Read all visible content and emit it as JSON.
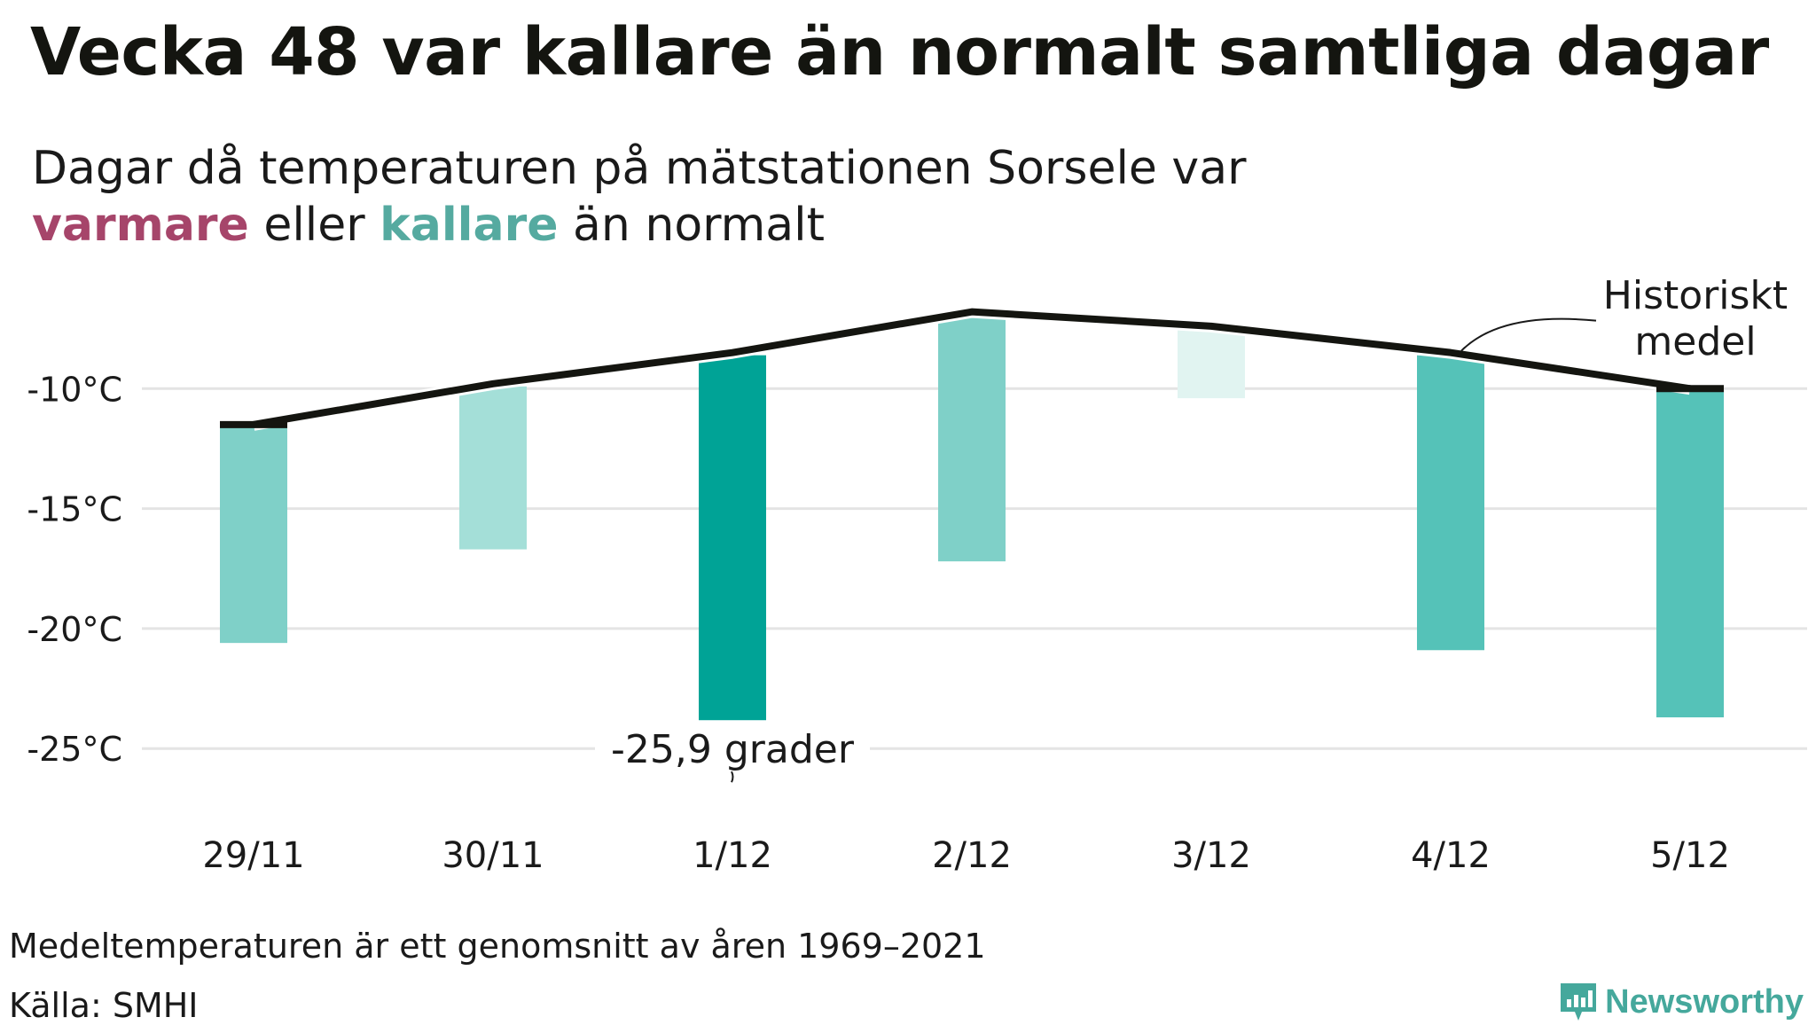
{
  "title": "Vecka 48 var kallare än normalt samtliga dagar",
  "subtitle": {
    "line1": "Dagar då temperaturen på mätstationen Sorsele var",
    "warm_word": "varmare",
    "between": "eller",
    "cold_word": "kallare",
    "end": "än normalt"
  },
  "colors": {
    "warm": "#a6456a",
    "cold": "#55aaa0",
    "line": "#141510",
    "grid": "#e4e4e4",
    "brand": "#45a89c"
  },
  "chart_data": {
    "type": "bar",
    "categories": [
      "29/11",
      "30/11",
      "1/12",
      "2/12",
      "3/12",
      "4/12",
      "5/12"
    ],
    "series": [
      {
        "values": [
          -20.6,
          -16.7,
          -25.9,
          -17.2,
          -10.4,
          -20.9,
          -23.7
        ]
      },
      {
        "name": "Historiskt medel",
        "values": [
          -11.5,
          -9.8,
          -8.5,
          -6.8,
          -7.4,
          -8.5,
          -10.0
        ]
      }
    ],
    "bar_colors": [
      "#7fd0c8",
      "#a4dfd8",
      "#00a396",
      "#7fd0c8",
      "#e1f4f1",
      "#55c2b8",
      "#55c2b8"
    ],
    "yticks": [
      "-10°C",
      "-15°C",
      "-20°C",
      "-25°C"
    ],
    "ytick_values": [
      -10,
      -15,
      -20,
      -25
    ],
    "ylim": [
      -27.8,
      -6.0
    ],
    "annotations": [
      {
        "text": "-25,9 grader",
        "category": "1/12"
      },
      {
        "text_lines": [
          "Historiskt",
          "medel"
        ],
        "category": "4/12"
      }
    ],
    "grid": true,
    "legend": "none"
  },
  "footer": {
    "note": "Medeltemperaturen är ett genomsnitt av åren 1969–2021",
    "source": "Källa: SMHI",
    "brand": "Newsworthy"
  }
}
